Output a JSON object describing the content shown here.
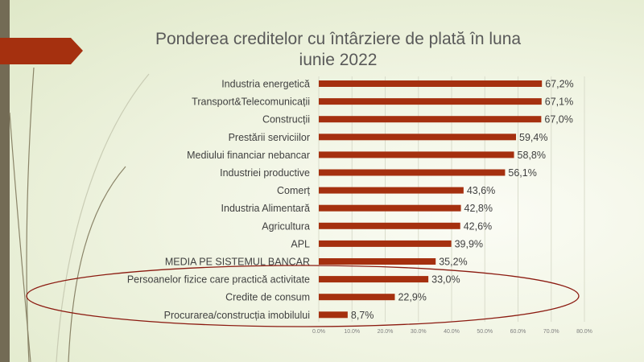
{
  "chart_data": {
    "type": "bar",
    "orientation": "horizontal",
    "title": "Ponderea creditelor cu întârziere de plată în luna iunie 2022",
    "title_lines": [
      "Ponderea creditelor cu întârziere de plată în luna",
      "iunie 2022"
    ],
    "categories": [
      "Industria energetică",
      "Transport&Telecomunicații",
      "Construcții",
      "Prestării serviciilor",
      "Mediului financiar nebancar",
      "Industriei productive",
      "Comerț",
      "Industria Alimentară",
      "Agricultura",
      "APL",
      "MEDIA PE SISTEMUL BANCAR",
      "Persoanelor fizice care practică activitate",
      "Credite de consum",
      "Procurarea/construcția imobilului"
    ],
    "values": [
      67.2,
      67.1,
      67.0,
      59.4,
      58.8,
      56.1,
      43.6,
      42.8,
      42.6,
      39.9,
      35.2,
      33.0,
      22.9,
      8.7
    ],
    "data_labels": [
      "67,2%",
      "67,1%",
      "67,0%",
      "59,4%",
      "58,8%",
      "56,1%",
      "43,6%",
      "42,8%",
      "42,6%",
      "39,9%",
      "35,2%",
      "33,0%",
      "22,9%",
      "8,7%"
    ],
    "xlim": [
      0,
      80
    ],
    "x_ticks": [
      "0.0%",
      "10.0%",
      "20.0%",
      "30.0%",
      "40.0%",
      "50.0%",
      "60.0%",
      "70.0%",
      "80.0%"
    ],
    "grid": true,
    "bar_color": "#a5300f",
    "highlight": "ellipse around last three categories"
  }
}
